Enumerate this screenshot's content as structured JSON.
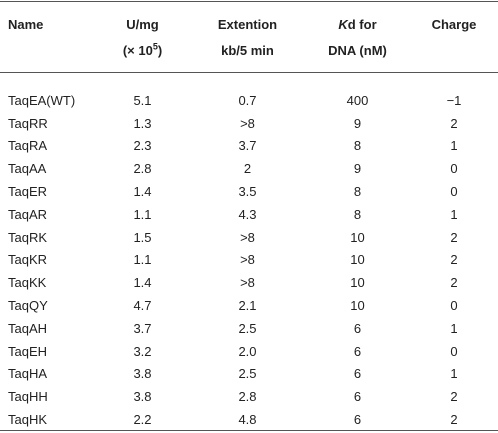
{
  "table": {
    "header": [
      [
        [
          "Name"
        ]
      ],
      [
        [
          "U/mg"
        ],
        [
          "(× 10",
          {
            "text": "5",
            "sup": true
          },
          ")"
        ]
      ],
      [
        [
          "Extention"
        ],
        [
          "kb/5 min"
        ]
      ],
      [
        [
          {
            "text": "K",
            "italic": true
          },
          "d for"
        ],
        [
          "DNA (nM)"
        ]
      ],
      [
        [
          "Charge"
        ]
      ]
    ],
    "rows": [
      [
        "TaqEA(WT)",
        "5.1",
        "0.7",
        "400",
        "−1"
      ],
      [
        "TaqRR",
        "1.3",
        ">8",
        "9",
        "2"
      ],
      [
        "TaqRA",
        "2.3",
        "3.7",
        "8",
        "1"
      ],
      [
        "TaqAA",
        "2.8",
        "2",
        "9",
        "0"
      ],
      [
        "TaqER",
        "1.4",
        "3.5",
        "8",
        "0"
      ],
      [
        "TaqAR",
        "1.1",
        "4.3",
        "8",
        "1"
      ],
      [
        "TaqRK",
        "1.5",
        ">8",
        "10",
        "2"
      ],
      [
        "TaqKR",
        "1.1",
        ">8",
        "10",
        "2"
      ],
      [
        "TaqKK",
        "1.4",
        ">8",
        "10",
        "2"
      ],
      [
        "TaqQY",
        "4.7",
        "2.1",
        "10",
        "0"
      ],
      [
        "TaqAH",
        "3.7",
        "2.5",
        "6",
        "1"
      ],
      [
        "TaqEH",
        "3.2",
        "2.0",
        "6",
        "0"
      ],
      [
        "TaqHA",
        "3.8",
        "2.5",
        "6",
        "1"
      ],
      [
        "TaqHH",
        "3.8",
        "2.8",
        "6",
        "2"
      ],
      [
        "TaqHK",
        "2.2",
        "4.8",
        "6",
        "2"
      ]
    ]
  }
}
